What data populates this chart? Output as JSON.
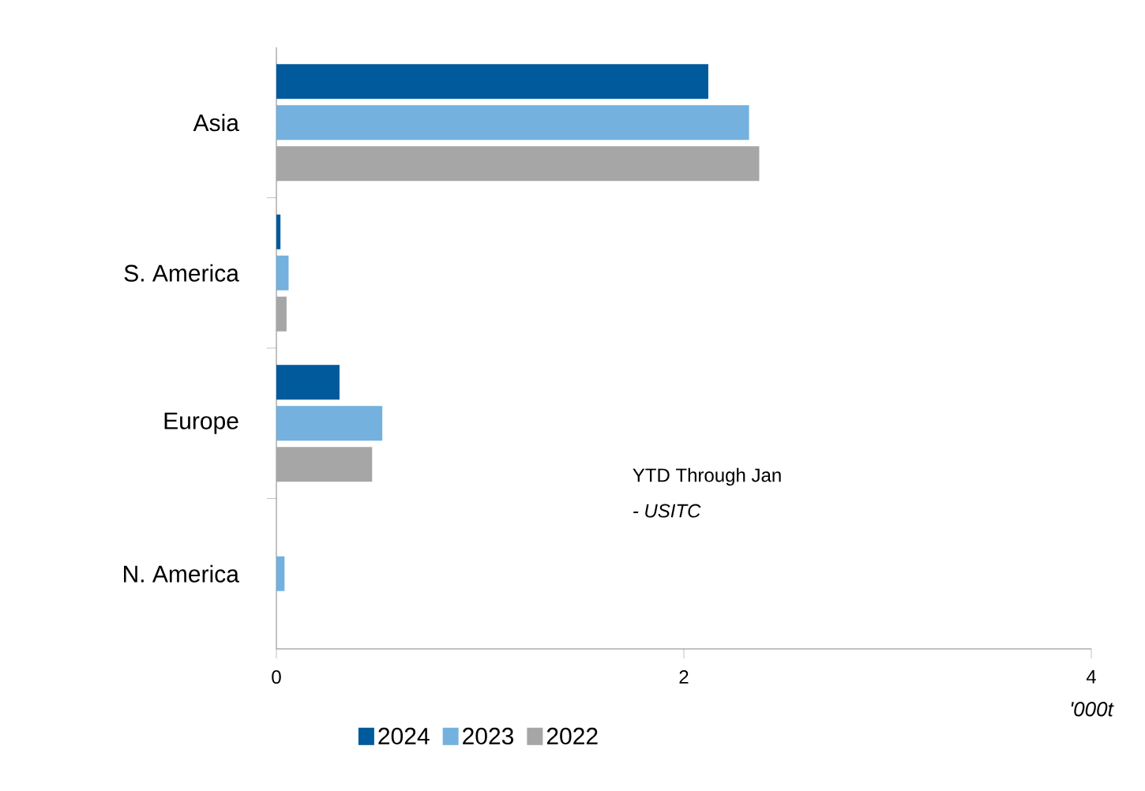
{
  "chart_data": {
    "type": "bar",
    "orientation": "horizontal",
    "categories": [
      "Asia",
      "S. America",
      "Europe",
      "N. America"
    ],
    "series": [
      {
        "name": "2024",
        "color": "#005a9c",
        "values": [
          2.12,
          0.02,
          0.31,
          0
        ]
      },
      {
        "name": "2023",
        "color": "#74b1de",
        "values": [
          2.32,
          0.06,
          0.52,
          0.04
        ]
      },
      {
        "name": "2022",
        "color": "#a6a6a6",
        "values": [
          2.37,
          0.05,
          0.47,
          0
        ]
      }
    ],
    "xlim": [
      0,
      4
    ],
    "xticks": [
      0,
      2,
      4
    ],
    "xlabel": "'000t",
    "legend": "bottom",
    "grid": false,
    "annotations": [
      "YTD Through Jan",
      "- USITC"
    ]
  }
}
